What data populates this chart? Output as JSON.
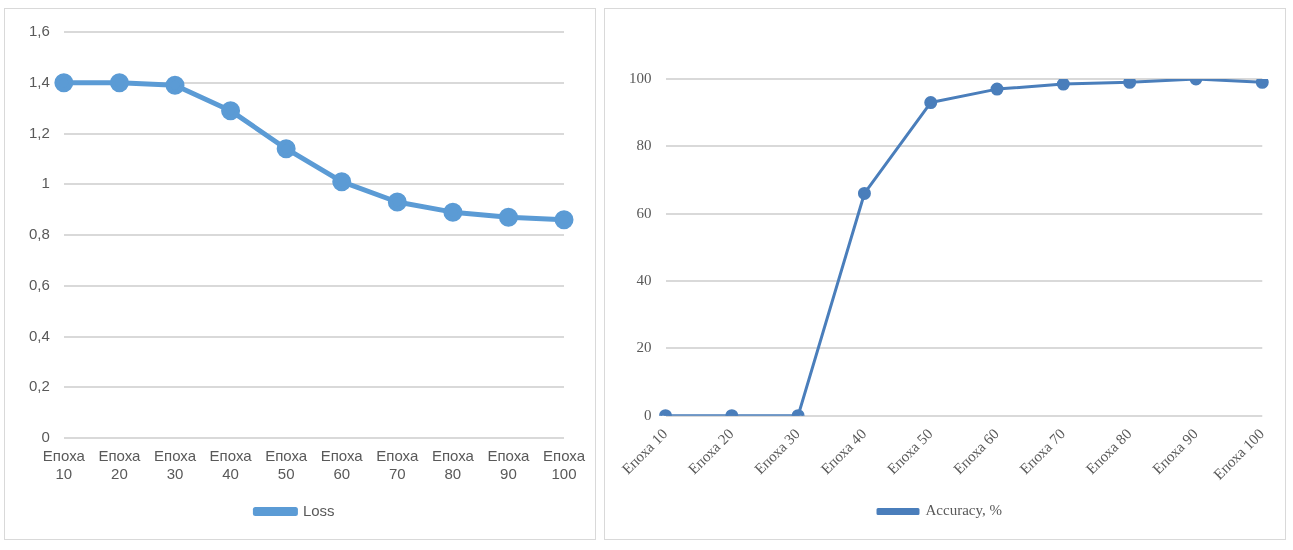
{
  "chart_data": [
    {
      "type": "line",
      "categories": [
        "Епоха 10",
        "Епоха 20",
        "Епоха 30",
        "Епоха 40",
        "Епоха 50",
        "Епоха 60",
        "Епоха 70",
        "Епоха 80",
        "Епоха 90",
        "Епоха 100"
      ],
      "series": [
        {
          "name": "Loss",
          "color": "#5b9bd5",
          "values": [
            1.4,
            1.4,
            1.39,
            1.29,
            1.14,
            1.01,
            0.93,
            0.89,
            0.87,
            0.86
          ]
        }
      ],
      "ylim": [
        0,
        1.6
      ],
      "yticks": [
        {
          "value": 0,
          "label": "0"
        },
        {
          "value": 0.2,
          "label": "0,2"
        },
        {
          "value": 0.4,
          "label": "0,4"
        },
        {
          "value": 0.6,
          "label": "0,6"
        },
        {
          "value": 0.8,
          "label": "0,8"
        },
        {
          "value": 1,
          "label": "1"
        },
        {
          "value": 1.2,
          "label": "1,2"
        },
        {
          "value": 1.4,
          "label": "1,4"
        },
        {
          "value": 1.6,
          "label": "1,6"
        }
      ],
      "grid": "y",
      "legend": "bottom",
      "marker": "circle",
      "line_style": "solid"
    },
    {
      "type": "line",
      "categories": [
        "Епоха 10",
        "Епоха 20",
        "Епоха 30",
        "Епоха 40",
        "Епоха 50",
        "Епоха 60",
        "Епоха 70",
        "Епоха 80",
        "Епоха 90",
        "Епоха 100"
      ],
      "series": [
        {
          "name": "Accuracy, %",
          "color": "#4a7ebb",
          "values": [
            0,
            0,
            0,
            66,
            93,
            97,
            98.5,
            99,
            100,
            99
          ]
        }
      ],
      "ylim": [
        0,
        100
      ],
      "yticks": [
        0,
        20,
        40,
        60,
        80,
        100
      ],
      "grid": "y",
      "legend": "bottom",
      "marker": "circle",
      "line_style": "solid"
    }
  ]
}
